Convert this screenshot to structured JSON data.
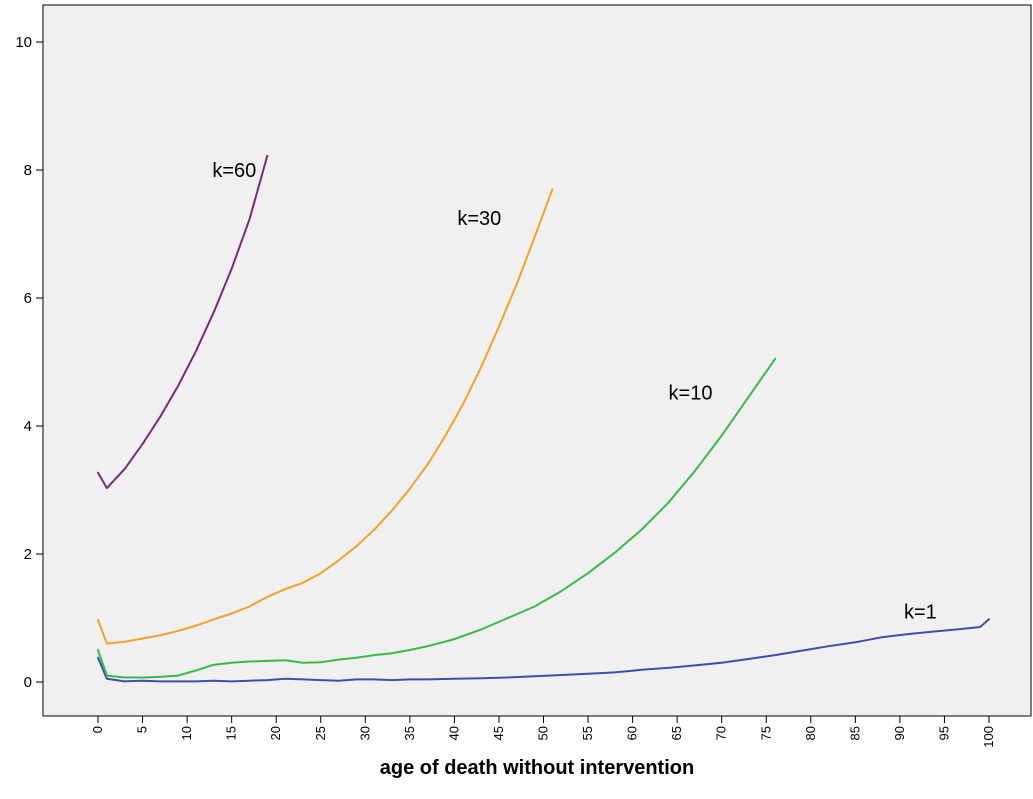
{
  "chart_data": {
    "type": "line",
    "xlabel": "age of death without intervention",
    "ylabel": "",
    "xlim": [
      0,
      100
    ],
    "ylim": [
      0,
      10
    ],
    "x_ticks": [
      "0",
      "5",
      "10",
      "15",
      "20",
      "25",
      "30",
      "35",
      "40",
      "45",
      "50",
      "55",
      "60",
      "65",
      "70",
      "75",
      "80",
      "85",
      "90",
      "95",
      "100"
    ],
    "y_ticks": [
      "0",
      "2",
      "4",
      "6",
      "8",
      "10"
    ],
    "grid": false,
    "background": "#f0f0f0",
    "series": [
      {
        "name": "k=1",
        "color": "#3d4fa8",
        "x": [
          0,
          1,
          3,
          5,
          7,
          9,
          11,
          13,
          15,
          17,
          19,
          21,
          23,
          25,
          27,
          29,
          31,
          33,
          35,
          37,
          40,
          43,
          46,
          49,
          52,
          55,
          58,
          61,
          64,
          67,
          70,
          73,
          76,
          79,
          82,
          85,
          88,
          91,
          94,
          97,
          99,
          100
        ],
        "y": [
          0.38,
          0.05,
          0.01,
          0.02,
          0.01,
          0.01,
          0.01,
          0.02,
          0.01,
          0.02,
          0.03,
          0.05,
          0.04,
          0.03,
          0.02,
          0.04,
          0.04,
          0.03,
          0.04,
          0.04,
          0.05,
          0.06,
          0.07,
          0.09,
          0.11,
          0.13,
          0.15,
          0.19,
          0.22,
          0.26,
          0.3,
          0.36,
          0.42,
          0.49,
          0.56,
          0.62,
          0.7,
          0.75,
          0.79,
          0.83,
          0.86,
          0.98
        ]
      },
      {
        "name": "k=10",
        "color": "#3cb84a",
        "x": [
          0,
          1,
          3,
          5,
          7,
          9,
          11,
          13,
          15,
          17,
          19,
          21,
          23,
          25,
          27,
          29,
          31,
          33,
          35,
          37,
          40,
          43,
          46,
          49,
          52,
          55,
          58,
          61,
          64,
          67,
          70,
          73,
          76
        ],
        "y": [
          0.5,
          0.1,
          0.07,
          0.07,
          0.08,
          0.1,
          0.18,
          0.27,
          0.3,
          0.32,
          0.33,
          0.34,
          0.3,
          0.31,
          0.35,
          0.38,
          0.42,
          0.45,
          0.5,
          0.56,
          0.67,
          0.82,
          1.0,
          1.18,
          1.42,
          1.7,
          2.02,
          2.38,
          2.8,
          3.3,
          3.85,
          4.45,
          5.05
        ]
      },
      {
        "name": "k=30",
        "color": "#f5a02a",
        "x": [
          0,
          1,
          3,
          5,
          7,
          9,
          11,
          13,
          15,
          17,
          19,
          21,
          23,
          25,
          27,
          29,
          31,
          33,
          35,
          37,
          39,
          41,
          43,
          45,
          47,
          49,
          51
        ],
        "y": [
          0.97,
          0.6,
          0.63,
          0.68,
          0.73,
          0.8,
          0.88,
          0.98,
          1.07,
          1.18,
          1.33,
          1.45,
          1.55,
          1.7,
          1.9,
          2.12,
          2.38,
          2.68,
          3.02,
          3.4,
          3.85,
          4.35,
          4.92,
          5.55,
          6.22,
          6.95,
          7.7
        ]
      },
      {
        "name": "k=60",
        "color": "#7a2a7c",
        "x": [
          0,
          1,
          3,
          5,
          7,
          9,
          11,
          13,
          15,
          17,
          19
        ],
        "y": [
          3.27,
          3.03,
          3.33,
          3.72,
          4.15,
          4.63,
          5.17,
          5.78,
          6.46,
          7.23,
          8.22
        ]
      }
    ],
    "labels": [
      {
        "text": "k=60",
        "x": 15.3,
        "y": 8.0
      },
      {
        "text": "k=30",
        "x": 42.8,
        "y": 7.25
      },
      {
        "text": "k=10",
        "x": 66.5,
        "y": 4.52
      },
      {
        "text": "k=1",
        "x": 92.3,
        "y": 1.1
      }
    ]
  }
}
